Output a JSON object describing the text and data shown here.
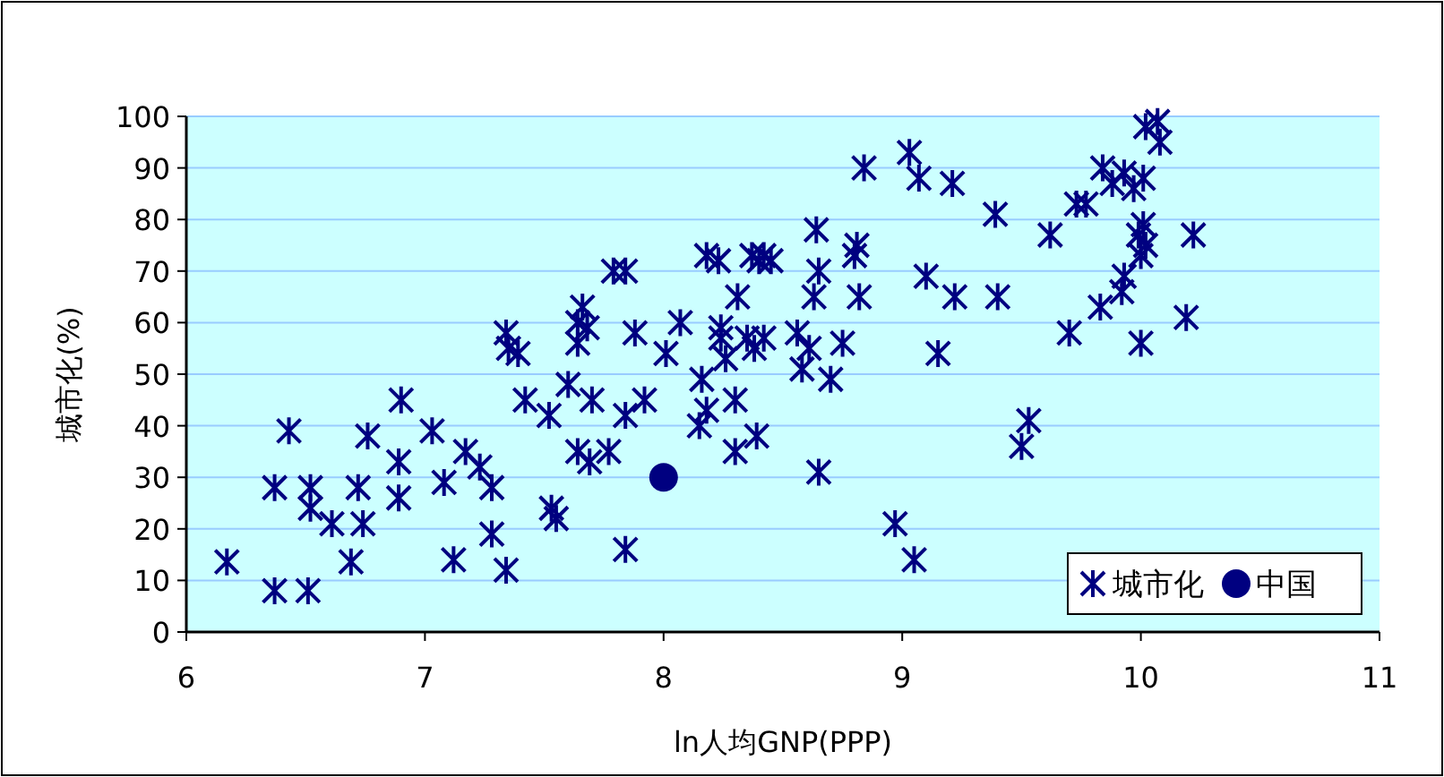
{
  "chart_data": {
    "type": "scatter",
    "xlabel": "ln人均GNP(PPP)",
    "ylabel": "城市化(%)",
    "xlim": [
      6,
      11
    ],
    "ylim": [
      0,
      100
    ],
    "xticks": [
      6,
      7,
      8,
      9,
      10,
      11
    ],
    "yticks": [
      0,
      10,
      20,
      30,
      40,
      50,
      60,
      70,
      80,
      90,
      100
    ],
    "grid": "y",
    "legend": "bottom right",
    "series": [
      {
        "name": "城市化",
        "color": "#000080",
        "marker": "cross",
        "x": [
          6.17,
          6.37,
          6.37,
          6.43,
          6.52,
          6.51,
          6.52,
          6.61,
          6.69,
          6.72,
          6.74,
          6.76,
          6.89,
          6.89,
          6.9,
          7.03,
          7.08,
          7.12,
          7.17,
          7.23,
          7.28,
          7.28,
          7.34,
          7.34,
          7.35,
          7.39,
          7.42,
          7.52,
          7.53,
          7.55,
          7.6,
          7.64,
          7.64,
          7.64,
          7.66,
          7.68,
          7.69,
          7.7,
          7.77,
          7.79,
          7.84,
          7.84,
          7.84,
          7.88,
          7.92,
          8.01,
          8.07,
          8.15,
          8.16,
          8.18,
          8.18,
          8.23,
          8.24,
          8.24,
          8.26,
          8.3,
          8.3,
          8.31,
          8.35,
          8.37,
          8.4,
          8.42,
          8.45,
          8.42,
          8.39,
          8.38,
          8.56,
          8.58,
          8.61,
          8.63,
          8.64,
          8.65,
          8.65,
          8.7,
          8.75,
          8.8,
          8.81,
          8.82,
          8.84,
          8.97,
          9.03,
          9.07,
          9.05,
          9.1,
          9.15,
          9.21,
          9.22,
          9.39,
          9.4,
          9.5,
          9.53,
          9.62,
          9.7,
          9.73,
          9.77,
          9.83,
          9.84,
          9.88,
          9.93,
          9.93,
          9.97,
          10.0,
          9.99,
          10.01,
          10.0,
          10.02,
          10.01,
          10.02,
          10.07,
          10.08,
          10.19,
          10.22,
          9.92
        ],
        "values": [
          13.6,
          28,
          8,
          39,
          28,
          8,
          24,
          21,
          13.6,
          28,
          21,
          38,
          33,
          26,
          45,
          39,
          29,
          14,
          35,
          32,
          19,
          28,
          12,
          58,
          55,
          54,
          45,
          42,
          24,
          22,
          48,
          56,
          35,
          60,
          63,
          59,
          33,
          45,
          35,
          70,
          70,
          42,
          16,
          58,
          45,
          54,
          60,
          40,
          49,
          73,
          43,
          72,
          57,
          59,
          53,
          45,
          35,
          65,
          57,
          73,
          72,
          73,
          72,
          57,
          38,
          55,
          58,
          51,
          55,
          65,
          78,
          70,
          31,
          49,
          56,
          73,
          75,
          65,
          90,
          21,
          93,
          88,
          14,
          69,
          54,
          87,
          65,
          81,
          65,
          36,
          41,
          77,
          58,
          83,
          83,
          63,
          90,
          87,
          69,
          89,
          86,
          56,
          77,
          79,
          73,
          75,
          88,
          98,
          99,
          95,
          61,
          77,
          66
        ]
      },
      {
        "name": "中国",
        "color": "#000080",
        "marker": "circle",
        "x": [
          8.0
        ],
        "values": [
          30
        ]
      }
    ]
  }
}
